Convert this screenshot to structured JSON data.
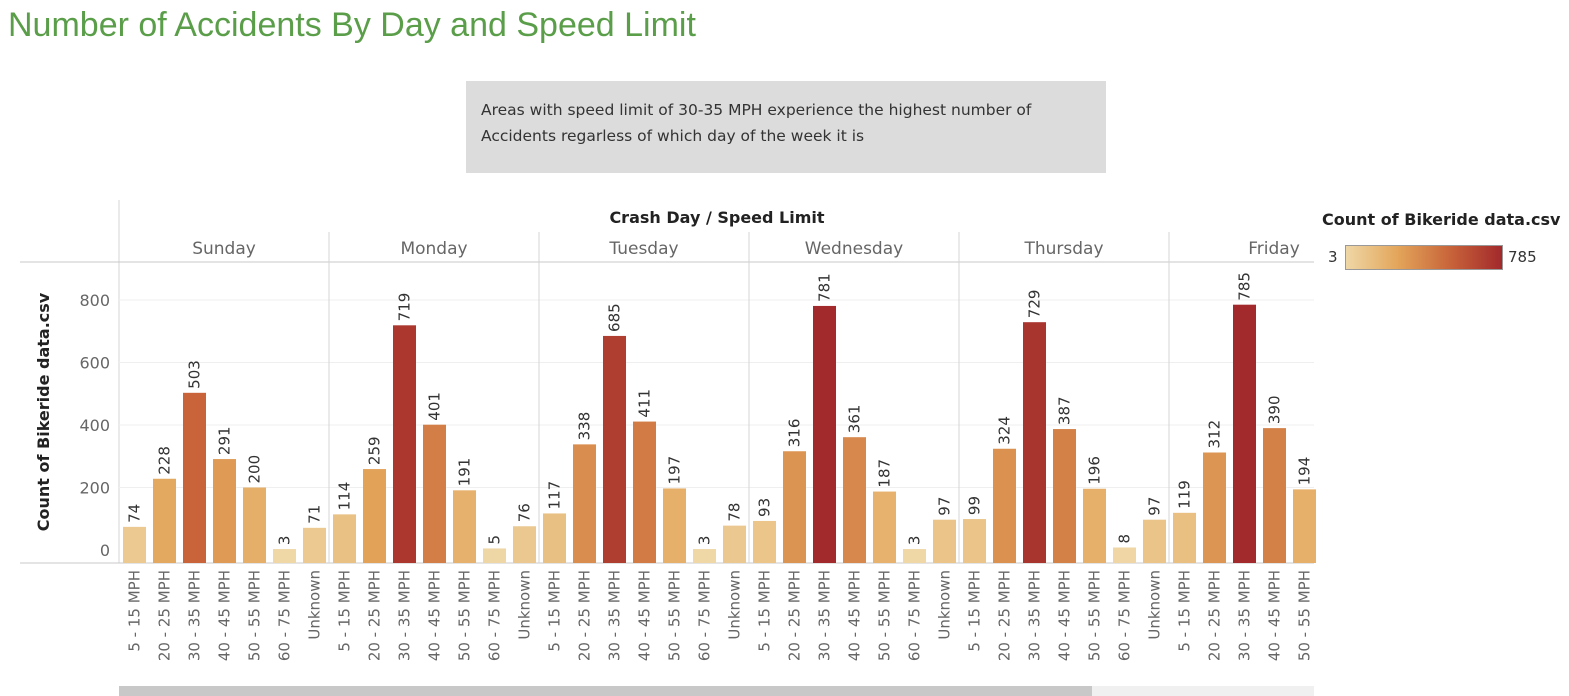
{
  "title": "Number of Accidents By Day and Speed Limit",
  "annotation": "Areas with speed limit of 30-35 MPH experience the highest number of Accidents regarless of which day of the week it is",
  "legend": {
    "title": "Count of Bikeride data.csv",
    "min": "3",
    "max": "785"
  },
  "colors": {
    "title": "#5b9e4a",
    "low": "#efd7a6",
    "mid": "#e3a55a",
    "high": "#a2292c"
  },
  "chart_data": {
    "type": "bar",
    "header": "Crash Day / Speed Limit",
    "ylabel": "Count of Bikeride data.csv",
    "ylim": [
      0,
      900
    ],
    "yticks": [
      "0",
      "200",
      "400",
      "600",
      "800"
    ],
    "days": [
      {
        "name": "Sunday",
        "categories": [
          "5 - 15 MPH",
          "20 - 25 MPH",
          "30 - 35 MPH",
          "40 - 45 MPH",
          "50 - 55 MPH",
          "60 - 75 MPH",
          "Unknown"
        ],
        "values": [
          74,
          228,
          503,
          291,
          200,
          3,
          71
        ]
      },
      {
        "name": "Monday",
        "categories": [
          "5 - 15 MPH",
          "20 - 25 MPH",
          "30 - 35 MPH",
          "40 - 45 MPH",
          "50 - 55 MPH",
          "60 - 75 MPH",
          "Unknown"
        ],
        "values": [
          114,
          259,
          719,
          401,
          191,
          5,
          76
        ]
      },
      {
        "name": "Tuesday",
        "categories": [
          "5 - 15 MPH",
          "20 - 25 MPH",
          "30 - 35 MPH",
          "40 - 45 MPH",
          "50 - 55 MPH",
          "60 - 75 MPH",
          "Unknown"
        ],
        "values": [
          117,
          338,
          685,
          411,
          197,
          3,
          78
        ]
      },
      {
        "name": "Wednesday",
        "categories": [
          "5 - 15 MPH",
          "20 - 25 MPH",
          "30 - 35 MPH",
          "40 - 45 MPH",
          "50 - 55 MPH",
          "60 - 75 MPH",
          "Unknown"
        ],
        "values": [
          93,
          316,
          781,
          361,
          187,
          3,
          97
        ]
      },
      {
        "name": "Thursday",
        "categories": [
          "5 - 15 MPH",
          "20 - 25 MPH",
          "30 - 35 MPH",
          "40 - 45 MPH",
          "50 - 55 MPH",
          "60 - 75 MPH",
          "Unknown"
        ],
        "values": [
          99,
          324,
          729,
          387,
          196,
          8,
          97
        ]
      },
      {
        "name": "Friday",
        "categories": [
          "5 - 15 MPH",
          "20 - 25 MPH",
          "30 - 35 MPH",
          "40 - 45 MPH",
          "50 - 55 MPH"
        ],
        "values": [
          119,
          312,
          785,
          390,
          194
        ]
      }
    ]
  }
}
